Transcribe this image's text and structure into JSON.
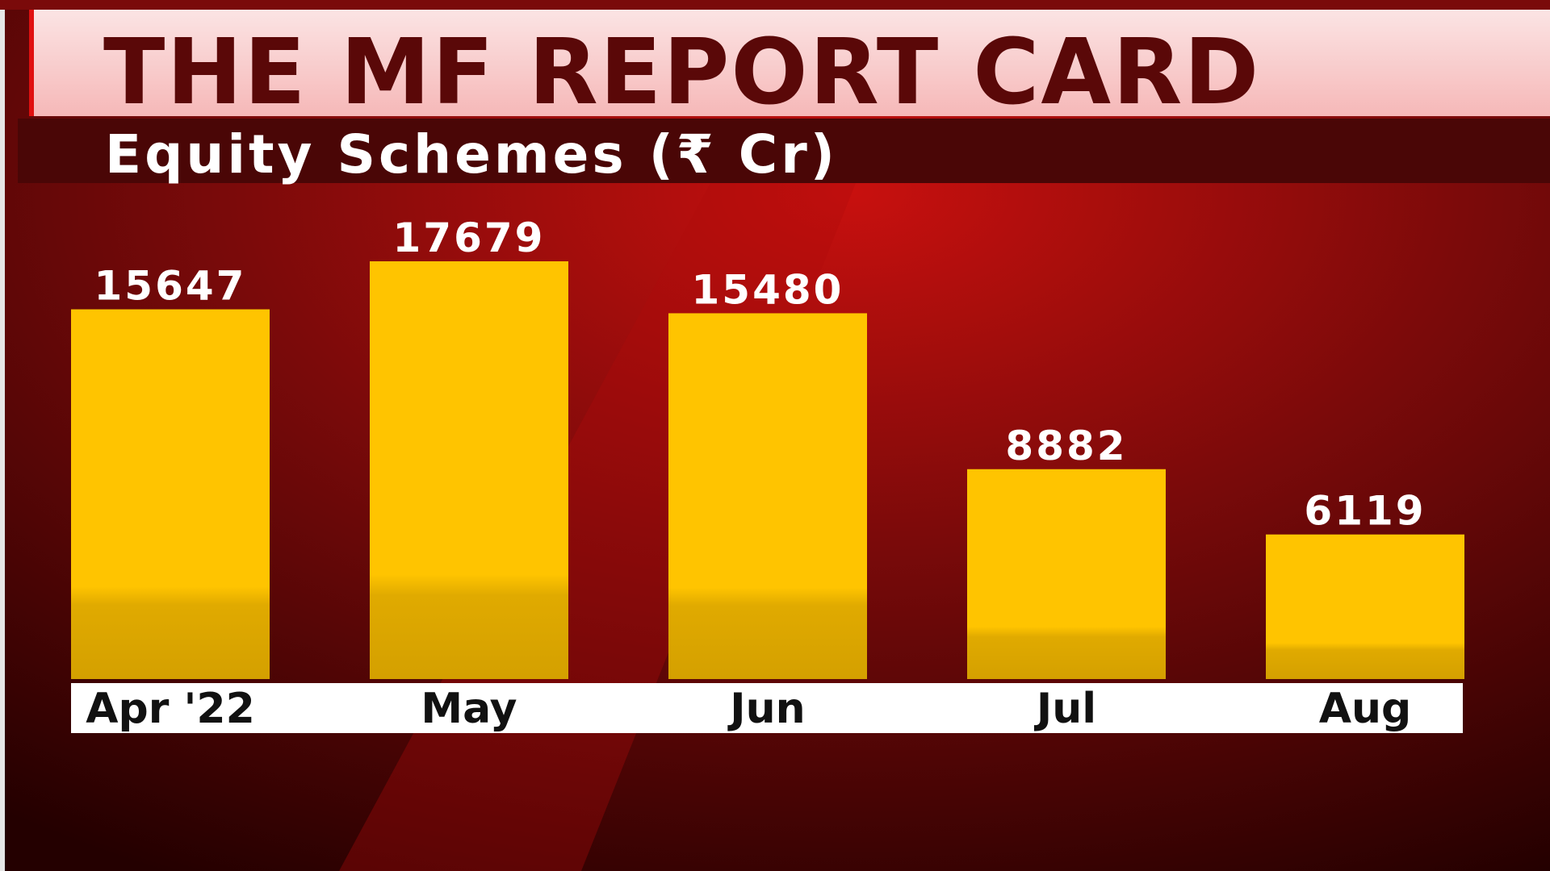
{
  "chart_data": {
    "type": "bar",
    "title": "THE MF REPORT CARD",
    "subtitle": "Equity Schemes (₹ Cr)",
    "categories": [
      "Apr '22",
      "May",
      "Jun",
      "Jul",
      "Aug"
    ],
    "values": [
      15647,
      17679,
      15480,
      8882,
      6119
    ],
    "color": "#ffc400"
  }
}
